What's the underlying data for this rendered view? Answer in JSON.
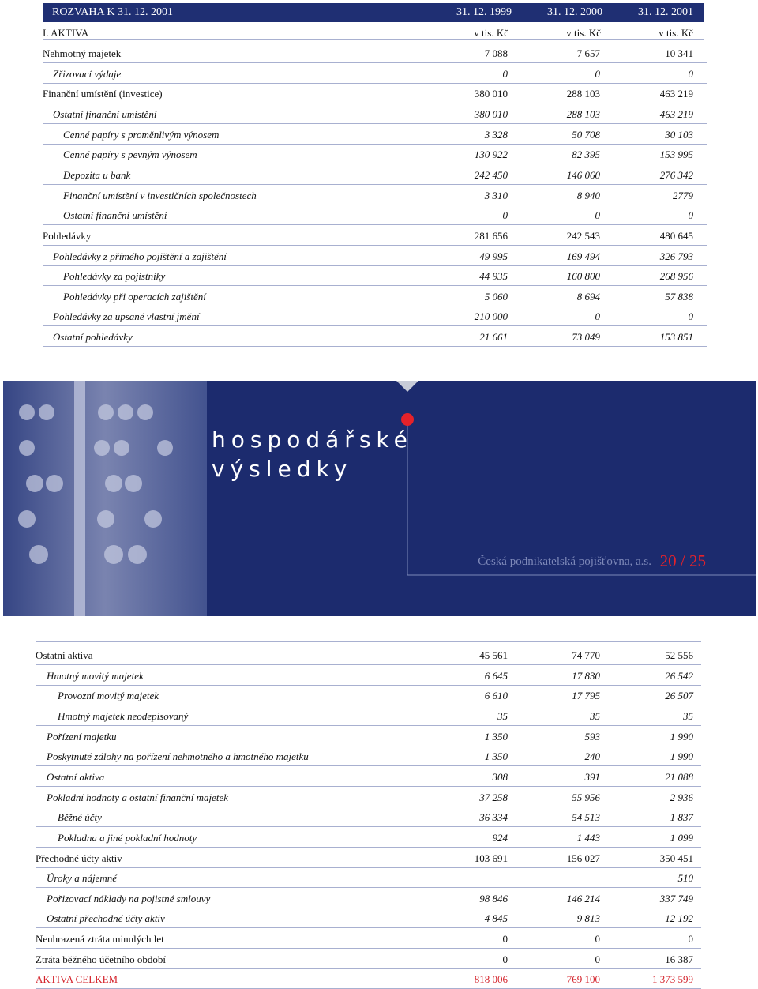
{
  "header": {
    "title": "ROZVAHA K 31. 12. 2001",
    "columns": [
      "31. 12. 1999",
      "31. 12. 2000",
      "31. 12. 2001"
    ],
    "section": "I. AKTIVA",
    "units": [
      "v tis. Kč",
      "v tis. Kč",
      "v tis. Kč"
    ]
  },
  "table_top": {
    "rows": [
      {
        "label": "Nehmotný majetek",
        "level": 0,
        "values": [
          "7 088",
          "7 657",
          "10 341"
        ]
      },
      {
        "label": "Zřizovací výdaje",
        "level": 1,
        "values": [
          "0",
          "0",
          "0"
        ]
      },
      {
        "label": "Finanční umístění (investice)",
        "level": 0,
        "values": [
          "380 010",
          "288 103",
          "463 219"
        ]
      },
      {
        "label": "Ostatní finanční umístění",
        "level": 1,
        "values": [
          "380 010",
          "288 103",
          "463 219"
        ]
      },
      {
        "label": "Cenné papíry s proměnlivým výnosem",
        "level": 2,
        "values": [
          "3 328",
          "50 708",
          "30 103"
        ]
      },
      {
        "label": "Cenné papíry s pevným výnosem",
        "level": 2,
        "values": [
          "130 922",
          "82 395",
          "153 995"
        ]
      },
      {
        "label": "Depozita u bank",
        "level": 2,
        "values": [
          "242 450",
          "146 060",
          "276 342"
        ]
      },
      {
        "label": "Finanční umístění v investičních společnostech",
        "level": 2,
        "values": [
          "3 310",
          "8 940",
          "2779"
        ]
      },
      {
        "label": "Ostatní finanční umístění",
        "level": 2,
        "values": [
          "0",
          "0",
          "0"
        ]
      },
      {
        "label": "Pohledávky",
        "level": 0,
        "values": [
          "281 656",
          "242 543",
          "480 645"
        ]
      },
      {
        "label": "Pohledávky z přímého pojištění a zajištění",
        "level": 1,
        "values": [
          "49 995",
          "169 494",
          "326 793"
        ]
      },
      {
        "label": "Pohledávky za pojistníky",
        "level": 2,
        "values": [
          "44 935",
          "160 800",
          "268 956"
        ]
      },
      {
        "label": "Pohledávky při operacích zajištění",
        "level": 2,
        "values": [
          "5 060",
          "8 694",
          "57 838"
        ]
      },
      {
        "label": "Pohledávky za upsané vlastní jmění",
        "level": 1,
        "values": [
          "210 000",
          "0",
          "0"
        ]
      },
      {
        "label": "Ostatní pohledávky",
        "level": 1,
        "values": [
          "21 661",
          "73 049",
          "153 851"
        ]
      }
    ]
  },
  "banner": {
    "title_lines": [
      "hospodářské",
      "výsledky"
    ],
    "company": "Česká podnikatelská pojišťovna, a.s.",
    "page": "20 / 25"
  },
  "table_bottom": {
    "rows": [
      {
        "label": "Ostatní aktiva",
        "level": 0,
        "values": [
          "45 561",
          "74 770",
          "52 556"
        ]
      },
      {
        "label": "Hmotný movitý majetek",
        "level": 1,
        "values": [
          "6 645",
          "17 830",
          "26 542"
        ]
      },
      {
        "label": "Provozní movitý majetek",
        "level": 2,
        "values": [
          "6 610",
          "17 795",
          "26 507"
        ]
      },
      {
        "label": "Hmotný majetek neodepisovaný",
        "level": 2,
        "values": [
          "35",
          "35",
          "35"
        ]
      },
      {
        "label": "Pořízení majetku",
        "level": 1,
        "values": [
          "1 350",
          "593",
          "1 990"
        ]
      },
      {
        "label": "Poskytnuté zálohy na pořízení nehmotného a hmotného majetku",
        "level": 1,
        "values": [
          "1 350",
          "240",
          "1 990"
        ]
      },
      {
        "label": "Ostatní aktiva",
        "level": 1,
        "values": [
          "308",
          "391",
          "21 088"
        ]
      },
      {
        "label": "Pokladní hodnoty a ostatní finanční majetek",
        "level": 1,
        "values": [
          "37 258",
          "55 956",
          "2 936"
        ]
      },
      {
        "label": "Běžné účty",
        "level": 2,
        "values": [
          "36 334",
          "54 513",
          "1 837"
        ]
      },
      {
        "label": "Pokladna a jiné pokladní hodnoty",
        "level": 2,
        "values": [
          "924",
          "1 443",
          "1 099"
        ]
      },
      {
        "label": "Přechodné účty aktiv",
        "level": 0,
        "values": [
          "103 691",
          "156 027",
          "350 451"
        ]
      },
      {
        "label": "Úroky a nájemné",
        "level": 1,
        "values": [
          null,
          null,
          "510"
        ]
      },
      {
        "label": "Pořizovací náklady na pojistné smlouvy",
        "level": 1,
        "values": [
          "98 846",
          "146 214",
          "337 749"
        ]
      },
      {
        "label": "Ostatní přechodné účty aktiv",
        "level": 1,
        "values": [
          "4 845",
          "9 813",
          "12 192"
        ]
      },
      {
        "label": "Neuhrazená ztráta minulých let",
        "level": 0,
        "values": [
          "0",
          "0",
          "0"
        ]
      },
      {
        "label": "Ztráta běžného účetního období",
        "level": 0,
        "values": [
          "0",
          "0",
          "16 387"
        ]
      },
      {
        "label": "AKTIVA CELKEM",
        "level": 0,
        "total": true,
        "values": [
          "818 006",
          "769 100",
          "1 373 599"
        ]
      }
    ]
  }
}
